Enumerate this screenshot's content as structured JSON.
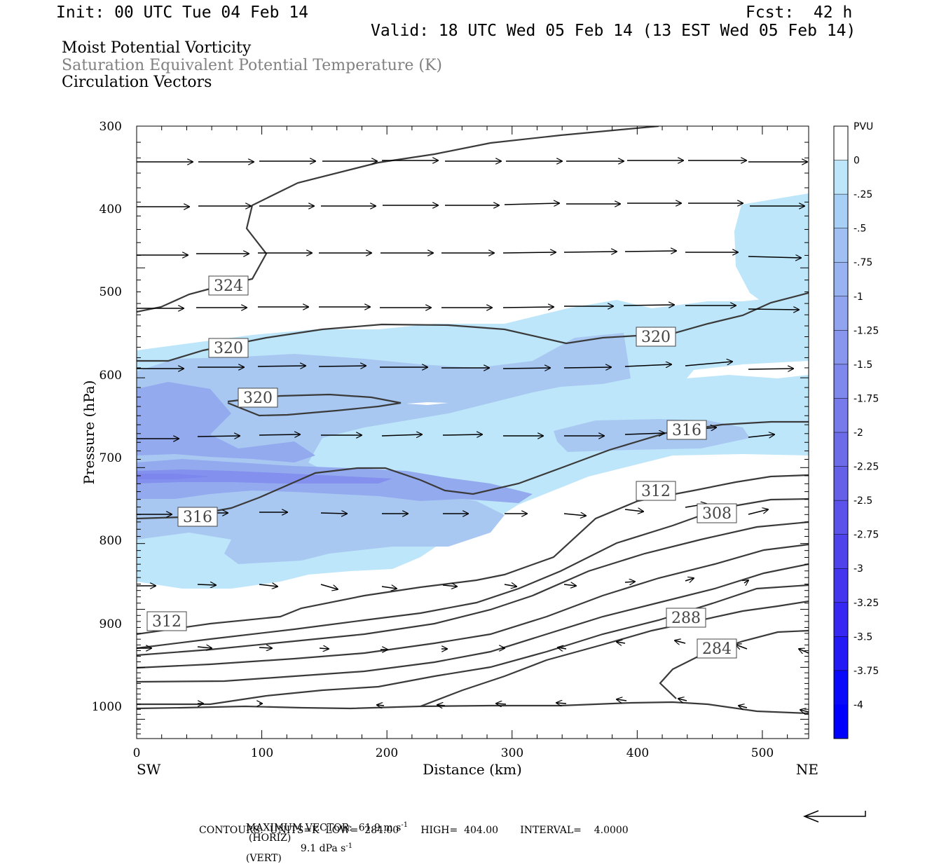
{
  "header": {
    "init": "Init: 00 UTC Tue 04 Feb 14",
    "fcst": "Fcst:  42 h",
    "valid": "Valid: 18 UTC Wed 05 Feb 14 (13 EST Wed 05 Feb 14)"
  },
  "titles": {
    "line1": "Moist Potential Vorticity",
    "line2": "Saturation Equivalent Potential Temperature (K)",
    "line3": "Circulation Vectors"
  },
  "colors": {
    "shade_025": "#bde6fa",
    "shade_05": "#a8c8f2",
    "shade_1": "#8fa6f0",
    "contour": "#3a3a3a",
    "text_grey": "#808080"
  },
  "chart_data": {
    "type": "cross-section",
    "xlabel": "Distance (km)",
    "ylabel": "Pressure (hPa)",
    "xlim": [
      0,
      537
    ],
    "ylim": [
      1040,
      300
    ],
    "y_scale": "log-pressure",
    "x_ticks": [
      "0",
      "100",
      "200",
      "300",
      "400",
      "500"
    ],
    "y_ticks": [
      "300",
      "400",
      "500",
      "600",
      "700",
      "800",
      "900",
      "1000"
    ],
    "left_endpoint": "SW",
    "right_endpoint": "NE",
    "colorbar": {
      "unit": "PVU",
      "labels": [
        "0",
        "-.25",
        "-.5",
        "-.75",
        "-1",
        "-1.25",
        "-1.5",
        "-1.75",
        "-2",
        "-2.25",
        "-2.5",
        "-2.75",
        "-3",
        "-3.25",
        "-3.5",
        "-3.75",
        "-4"
      ],
      "colors": [
        "#ffffff",
        "#bde6fa",
        "#a8d0f6",
        "#a0c0f4",
        "#98b2f2",
        "#90a4f0",
        "#8896ee",
        "#7f88ec",
        "#767aea",
        "#6d6ce8",
        "#6460e8",
        "#5a52ea",
        "#4f44ec",
        "#4436ef",
        "#3628f2",
        "#241af6",
        "#0a0afa"
      ]
    },
    "contour_labels": [
      {
        "text": "324",
        "x": 72,
        "p": 490
      },
      {
        "text": "320",
        "x": 73,
        "p": 570
      },
      {
        "text": "320",
        "x": 97,
        "p": 630
      },
      {
        "text": "320",
        "x": 415,
        "p": 553
      },
      {
        "text": "316",
        "x": 440,
        "p": 665
      },
      {
        "text": "316",
        "x": 48,
        "p": 772
      },
      {
        "text": "312",
        "x": 415,
        "p": 740
      },
      {
        "text": "308",
        "x": 463,
        "p": 768
      },
      {
        "text": "312",
        "x": 25,
        "p": 897
      },
      {
        "text": "288",
        "x": 438,
        "p": 895
      },
      {
        "text": "284",
        "x": 463,
        "p": 935
      }
    ],
    "footer": {
      "max_vector": "MAXIMUM VECTOR:  61.9 m s",
      "max_vector_unit": "-1",
      "horiz": "(HORIZ)",
      "vert_value": "9.1 dPa s",
      "vert_unit": "-1",
      "vert": "(VERT)",
      "contours": "CONTOURS:  UNITS=K  LOW=  284.00       HIGH=  404.00       INTERVAL=    4.0000"
    }
  }
}
